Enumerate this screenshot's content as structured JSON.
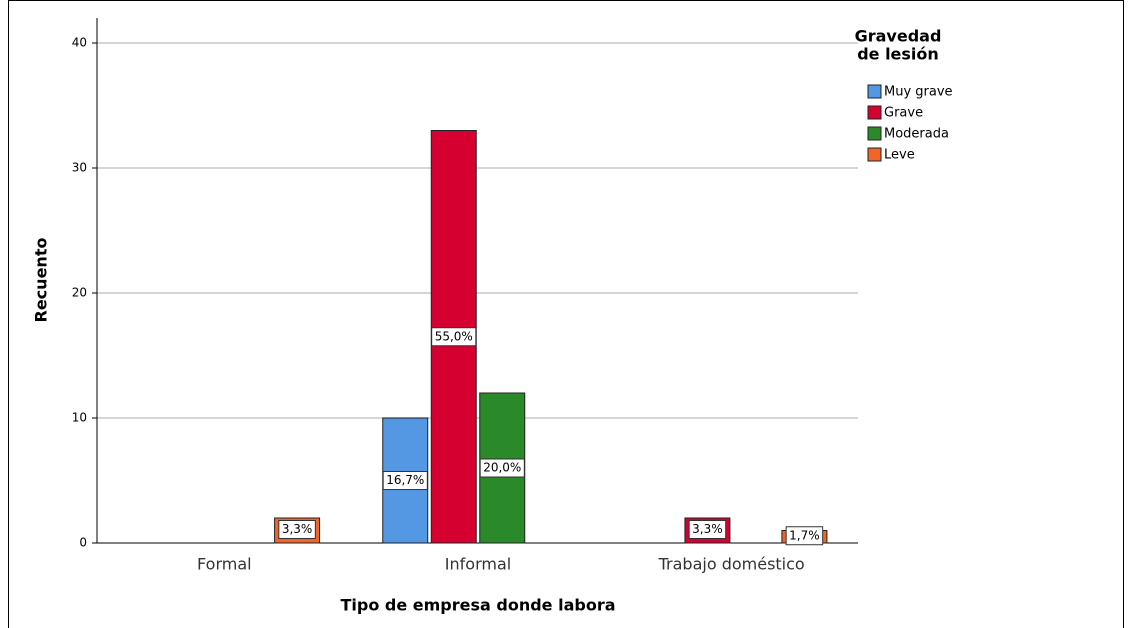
{
  "chart_data": {
    "type": "bar",
    "y_label": "Recuento",
    "x_label": "Tipo de empresa donde labora",
    "legend_title": [
      "Gravedad",
      "de lesión"
    ],
    "legend_position": "right",
    "categories": [
      "Formal",
      "Informal",
      "Trabajo doméstico"
    ],
    "series": [
      {
        "name": "Muy grave",
        "color": "#5497e3",
        "values": [
          0,
          10,
          0
        ],
        "value_labels": [
          null,
          "16,7%",
          null
        ]
      },
      {
        "name": "Grave",
        "color": "#d5002f",
        "values": [
          0,
          33,
          2
        ],
        "value_labels": [
          null,
          "55,0%",
          "3,3%"
        ]
      },
      {
        "name": "Moderada",
        "color": "#2a8a2a",
        "values": [
          0,
          12,
          0
        ],
        "value_labels": [
          null,
          "20,0%",
          null
        ]
      },
      {
        "name": "Leve",
        "color": "#f0652a",
        "values": [
          2,
          0,
          1
        ],
        "value_labels": [
          "3,3%",
          null,
          "1,7%"
        ]
      }
    ],
    "ylim": [
      0,
      40
    ],
    "yticks": [
      0,
      10,
      20,
      30,
      40
    ],
    "grid": true
  }
}
